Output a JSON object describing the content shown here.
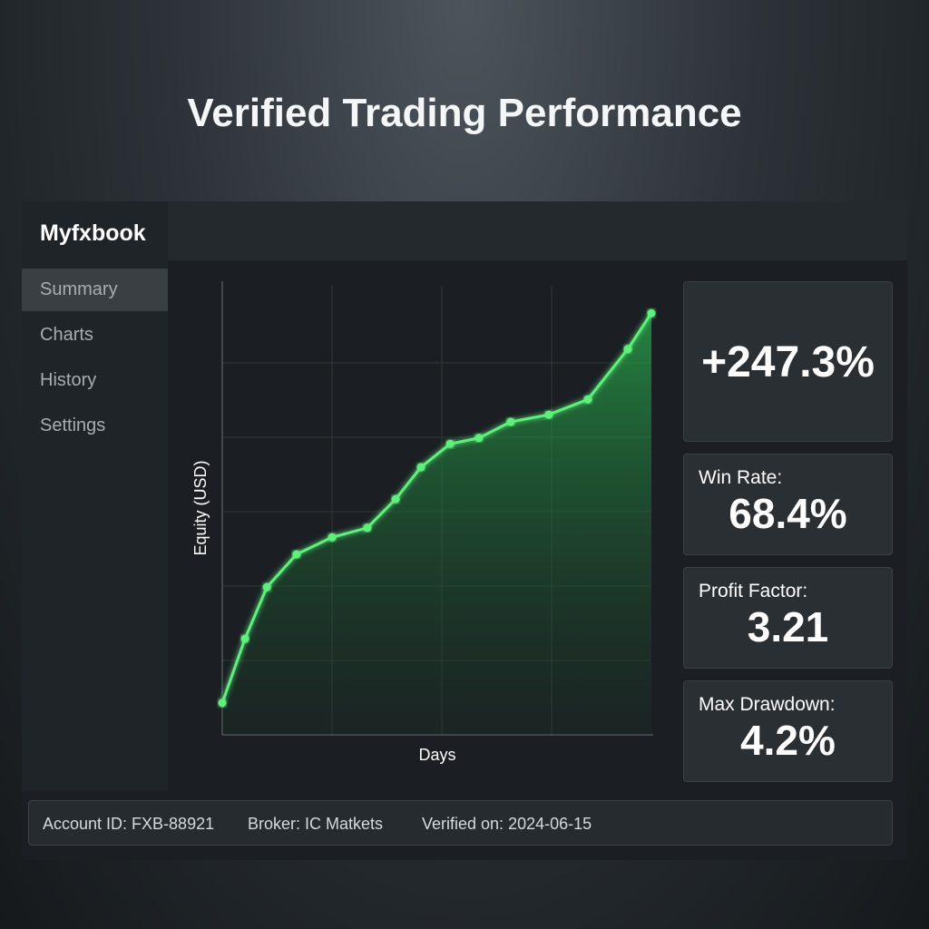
{
  "header": {
    "title": "Verified Trading Performance"
  },
  "sidebar": {
    "brand": "Myfxbook",
    "items": [
      "Summary",
      "Charts",
      "History",
      "Settings"
    ],
    "active": 0
  },
  "chart_data": {
    "type": "line",
    "y_label": "Equity (USD)",
    "x_label": "Days",
    "x": [
      0,
      5.3,
      10.4,
      17.3,
      25.6,
      33.8,
      40.4,
      46.3,
      53.1,
      59.8,
      67.2,
      76.1,
      85.2,
      94.5,
      100
    ],
    "values": [
      7.1,
      21.4,
      32.9,
      40.2,
      44.0,
      46.1,
      52.5,
      59.6,
      64.8,
      66.1,
      69.7,
      71.3,
      74.7,
      85.9,
      93.9
    ],
    "xlim": [
      0,
      100
    ],
    "ylim": [
      0,
      100
    ],
    "color": "#5cf27a",
    "grid": true
  },
  "stats": [
    {
      "value": "+247.3%"
    },
    {
      "label": "Win Rate:",
      "value": "68.4%"
    },
    {
      "label": "Profit Factor:",
      "value": "3.21"
    },
    {
      "label": "Max Drawdown:",
      "value": "4.2%"
    }
  ],
  "footer": [
    "Account ID: FXB-88921",
    "Broker: IC Matkets",
    "Verified on: 2024-06-15"
  ]
}
